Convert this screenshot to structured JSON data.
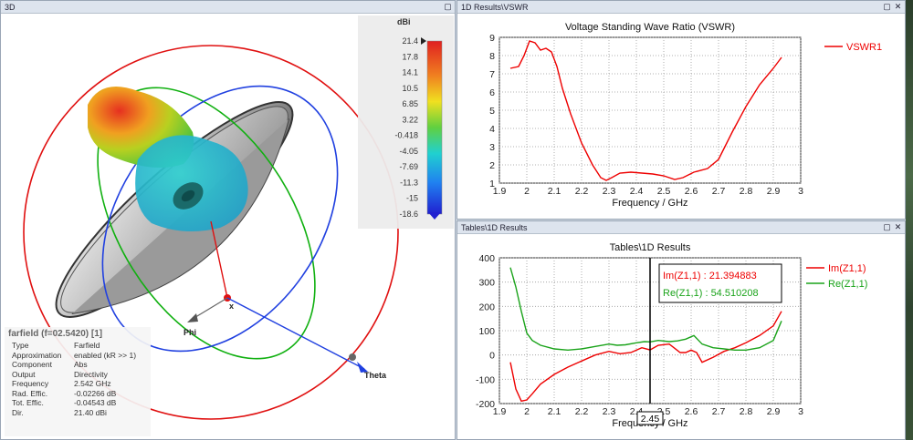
{
  "view3d": {
    "title": "3D",
    "colorbar": {
      "unit": "dBi",
      "ticks": [
        "21.4",
        "17.8",
        "14.1",
        "10.5",
        "6.85",
        "3.22",
        "-0.418",
        "-4.05",
        "-7.69",
        "-11.3",
        "-15",
        "-18.6"
      ]
    },
    "axes": {
      "x": "x",
      "phi": "Phi",
      "theta": "Theta"
    },
    "info": {
      "title": "farfield (f=02.5420) [1]",
      "rows": [
        {
          "k": "Type",
          "v": "Farfield"
        },
        {
          "k": "Approximation",
          "v": "enabled (kR >> 1)"
        },
        {
          "k": "Component",
          "v": "Abs"
        },
        {
          "k": "Output",
          "v": "Directivity"
        },
        {
          "k": "Frequency",
          "v": "2.542 GHz"
        },
        {
          "k": "Rad. Effic.",
          "v": "-0.02266 dB"
        },
        {
          "k": "Tot. Effic.",
          "v": "-0.04543 dB"
        },
        {
          "k": "Dir.",
          "v": "21.40 dBi"
        }
      ]
    }
  },
  "vswr_panel": {
    "title": "1D Results\\VSWR"
  },
  "tables_panel": {
    "title": "Tables\\1D Results"
  },
  "chart_data": [
    {
      "type": "line",
      "title": "Voltage Standing Wave Ratio (VSWR)",
      "xlabel": "Frequency / GHz",
      "ylabel": "",
      "xlim": [
        1.9,
        3
      ],
      "ylim": [
        1,
        9
      ],
      "xticks": [
        "1.9",
        "2",
        "2.1",
        "2.2",
        "2.3",
        "2.4",
        "2.5",
        "2.6",
        "2.7",
        "2.8",
        "2.9",
        "3"
      ],
      "yticks": [
        "1",
        "2",
        "3",
        "4",
        "5",
        "6",
        "7",
        "8",
        "9"
      ],
      "grid": true,
      "legend": "top-right",
      "series": [
        {
          "name": "VSWR1",
          "color": "#ee0000",
          "x": [
            1.94,
            1.97,
            1.99,
            2.01,
            2.03,
            2.05,
            2.07,
            2.09,
            2.11,
            2.13,
            2.16,
            2.2,
            2.24,
            2.27,
            2.29,
            2.31,
            2.34,
            2.38,
            2.42,
            2.46,
            2.5,
            2.54,
            2.57,
            2.61,
            2.66,
            2.7,
            2.75,
            2.8,
            2.85,
            2.9,
            2.93
          ],
          "y": [
            7.3,
            7.4,
            8.0,
            8.8,
            8.7,
            8.3,
            8.4,
            8.2,
            7.4,
            6.2,
            4.8,
            3.2,
            2.0,
            1.3,
            1.15,
            1.3,
            1.55,
            1.6,
            1.55,
            1.5,
            1.4,
            1.2,
            1.3,
            1.6,
            1.8,
            2.3,
            3.8,
            5.2,
            6.4,
            7.3,
            7.9
          ]
        }
      ]
    },
    {
      "type": "line",
      "title": "Tables\\1D Results",
      "xlabel": "Frequency / GHz",
      "ylabel": "",
      "xlim": [
        1.9,
        3
      ],
      "ylim": [
        -200,
        400
      ],
      "xticks": [
        "1.9",
        "2",
        "2.1",
        "2.2",
        "2.3",
        "2.4",
        "2.5",
        "2.6",
        "2.7",
        "2.8",
        "2.9",
        "3"
      ],
      "yticks": [
        "-200",
        "-100",
        "0",
        "100",
        "200",
        "300",
        "400"
      ],
      "grid": true,
      "legend": "top-right",
      "marker": {
        "x": 2.45,
        "label": "2.45",
        "im_text": "Im(Z1,1) : 21.394883",
        "re_text": "Re(Z1,1) : 54.510208"
      },
      "series": [
        {
          "name": "Im(Z1,1)",
          "color": "#ee0000",
          "x": [
            1.94,
            1.96,
            1.98,
            2.0,
            2.02,
            2.05,
            2.1,
            2.15,
            2.2,
            2.25,
            2.3,
            2.34,
            2.38,
            2.42,
            2.45,
            2.48,
            2.52,
            2.56,
            2.58,
            2.6,
            2.62,
            2.64,
            2.68,
            2.72,
            2.76,
            2.8,
            2.85,
            2.9,
            2.93
          ],
          "y": [
            -30,
            -140,
            -190,
            -185,
            -160,
            -120,
            -80,
            -50,
            -25,
            0,
            15,
            5,
            10,
            30,
            21,
            40,
            45,
            10,
            10,
            20,
            10,
            -30,
            -10,
            15,
            30,
            50,
            80,
            120,
            180
          ]
        },
        {
          "name": "Re(Z1,1)",
          "color": "#1aa31a",
          "x": [
            1.94,
            1.96,
            1.98,
            2.0,
            2.02,
            2.05,
            2.1,
            2.15,
            2.2,
            2.25,
            2.3,
            2.33,
            2.36,
            2.4,
            2.43,
            2.45,
            2.48,
            2.52,
            2.55,
            2.58,
            2.61,
            2.64,
            2.68,
            2.72,
            2.76,
            2.8,
            2.85,
            2.9,
            2.93
          ],
          "y": [
            360,
            280,
            180,
            90,
            60,
            40,
            25,
            20,
            25,
            35,
            45,
            40,
            42,
            50,
            55,
            54,
            60,
            55,
            58,
            65,
            80,
            45,
            30,
            25,
            20,
            20,
            30,
            60,
            140
          ]
        }
      ]
    }
  ]
}
